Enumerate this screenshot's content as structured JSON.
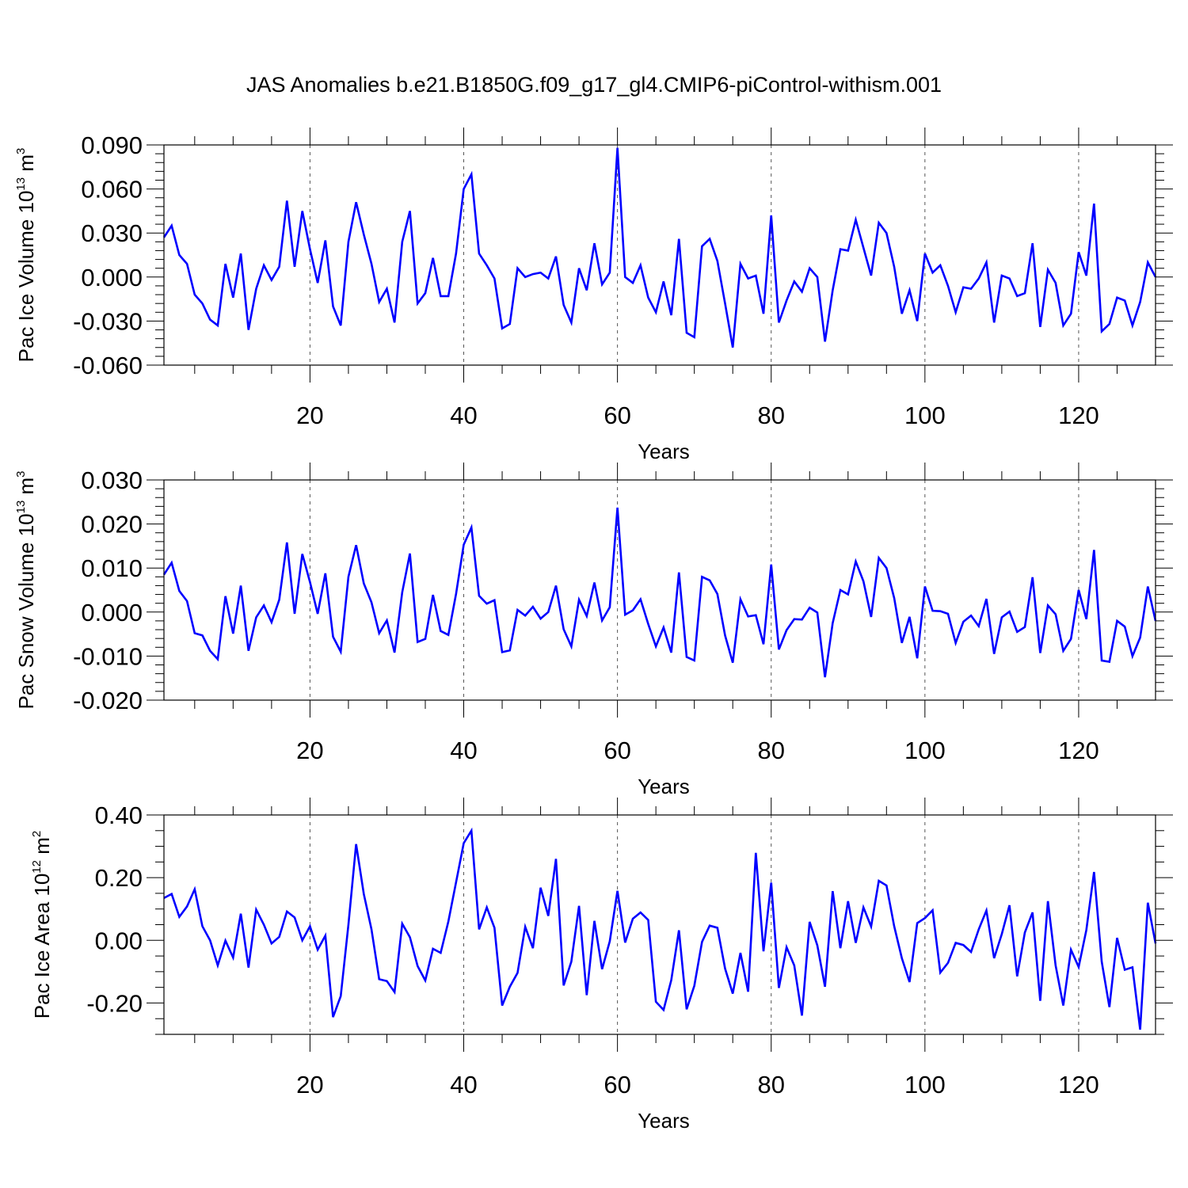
{
  "title": "JAS Anomalies b.e21.B1850G.f09_g17_gl4.CMIP6-piControl-withism.001",
  "colors": {
    "series": "#0000ff",
    "axis": "#000000",
    "grid": "#555555"
  },
  "chart_data": [
    {
      "type": "line",
      "title": "",
      "xlabel": "Years",
      "ylabel": {
        "prefix": "Pac Ice Volume 10",
        "exp": "13",
        "unit": " m",
        "unit_exp": "3"
      },
      "xlim": [
        1,
        130
      ],
      "ylim": [
        -0.06,
        0.09
      ],
      "xticks": [
        20,
        40,
        60,
        80,
        100,
        120
      ],
      "yticks": [
        -0.06,
        -0.03,
        0.0,
        0.03,
        0.06,
        0.09
      ],
      "ytick_labels": [
        "-0.060",
        "-0.030",
        "0.000",
        "0.030",
        "0.060",
        "0.090"
      ],
      "yminor": 0.006,
      "x_start": 1,
      "series": [
        {
          "name": "Pac Ice Volume",
          "values": [
            0.027,
            0.035,
            0.015,
            0.009,
            -0.012,
            -0.018,
            -0.029,
            -0.033,
            0.009,
            -0.014,
            0.016,
            -0.036,
            -0.008,
            0.008,
            -0.002,
            0.007,
            0.052,
            0.007,
            0.045,
            0.019,
            -0.004,
            0.025,
            -0.02,
            -0.033,
            0.024,
            0.051,
            0.029,
            0.009,
            -0.017,
            -0.008,
            -0.031,
            0.024,
            0.045,
            -0.018,
            -0.011,
            0.013,
            -0.013,
            -0.013,
            0.016,
            0.06,
            0.07,
            0.016,
            0.008,
            -0.001,
            -0.035,
            -0.032,
            0.006,
            0.0,
            0.002,
            0.003,
            -0.001,
            0.014,
            -0.019,
            -0.031,
            0.006,
            -0.009,
            0.023,
            -0.005,
            0.003,
            0.088,
            0.0,
            -0.004,
            0.008,
            -0.014,
            -0.024,
            -0.003,
            -0.026,
            0.026,
            -0.038,
            -0.041,
            0.021,
            0.026,
            0.011,
            -0.018,
            -0.048,
            0.009,
            -0.001,
            0.001,
            -0.025,
            0.042,
            -0.031,
            -0.016,
            -0.003,
            -0.01,
            0.006,
            0.0,
            -0.044,
            -0.009,
            0.019,
            0.018,
            0.039,
            0.02,
            0.001,
            0.037,
            0.03,
            0.007,
            -0.025,
            -0.009,
            -0.03,
            0.016,
            0.003,
            0.008,
            -0.006,
            -0.024,
            -0.007,
            -0.008,
            -0.001,
            0.01,
            -0.031,
            0.001,
            -0.001,
            -0.013,
            -0.011,
            0.023,
            -0.034,
            0.005,
            -0.004,
            -0.033,
            -0.025,
            0.017,
            0.001,
            0.05,
            -0.037,
            -0.032,
            -0.014,
            -0.016,
            -0.033,
            -0.017,
            0.01,
            0.0
          ]
        }
      ]
    },
    {
      "type": "line",
      "title": "",
      "xlabel": "Years",
      "ylabel": {
        "prefix": "Pac Snow Volume 10",
        "exp": "13",
        "unit": " m",
        "unit_exp": "3"
      },
      "xlim": [
        1,
        130
      ],
      "ylim": [
        -0.02,
        0.03
      ],
      "xticks": [
        20,
        40,
        60,
        80,
        100,
        120
      ],
      "yticks": [
        -0.02,
        -0.01,
        0.0,
        0.01,
        0.02,
        0.03
      ],
      "ytick_labels": [
        "-0.020",
        "-0.010",
        "0.000",
        "0.010",
        "0.020",
        "0.030"
      ],
      "yminor": 0.002,
      "x_start": 1,
      "series": [
        {
          "name": "Pac Snow Volume",
          "values": [
            0.0085,
            0.0112,
            0.0048,
            0.0025,
            -0.0048,
            -0.0053,
            -0.0088,
            -0.0107,
            0.0036,
            -0.0049,
            0.006,
            -0.0088,
            -0.0012,
            0.0015,
            -0.0023,
            0.0028,
            0.0158,
            -0.0004,
            0.0132,
            0.0068,
            -0.0004,
            0.0088,
            -0.0056,
            -0.009,
            0.008,
            0.0152,
            0.0065,
            0.0022,
            -0.0048,
            -0.0019,
            -0.0092,
            0.0045,
            0.0133,
            -0.0068,
            -0.0061,
            0.0039,
            -0.0043,
            -0.0052,
            0.0041,
            0.0153,
            0.0192,
            0.0037,
            0.0019,
            0.0027,
            -0.0091,
            -0.0087,
            0.0005,
            -0.0008,
            0.0012,
            -0.0015,
            0.0,
            0.006,
            -0.0039,
            -0.0078,
            0.0028,
            -0.0009,
            0.0067,
            -0.0019,
            0.0011,
            0.0237,
            -0.0006,
            0.0004,
            0.0029,
            -0.0027,
            -0.0078,
            -0.0035,
            -0.0092,
            0.009,
            -0.0102,
            -0.011,
            0.008,
            0.0072,
            0.0041,
            -0.0053,
            -0.0115,
            0.0029,
            -0.001,
            -0.0007,
            -0.0073,
            0.0108,
            -0.0085,
            -0.0041,
            -0.0016,
            -0.0017,
            0.001,
            -0.0001,
            -0.0148,
            -0.0025,
            0.005,
            0.004,
            0.0115,
            0.007,
            -0.0011,
            0.0123,
            0.01,
            0.0032,
            -0.007,
            -0.0011,
            -0.0105,
            0.0058,
            0.0003,
            0.0002,
            -0.0004,
            -0.007,
            -0.0022,
            -0.0008,
            -0.0032,
            0.003,
            -0.0095,
            -0.0012,
            0.0001,
            -0.0045,
            -0.0034,
            0.0079,
            -0.0093,
            0.0015,
            -0.0005,
            -0.0088,
            -0.0061,
            0.005,
            -0.0016,
            0.0141,
            -0.011,
            -0.0113,
            -0.002,
            -0.0033,
            -0.01,
            -0.0058,
            0.0058,
            -0.002
          ]
        }
      ]
    },
    {
      "type": "line",
      "title": "",
      "xlabel": "Years",
      "ylabel": {
        "prefix": "Pac Ice Area 10",
        "exp": "12",
        "unit": " m",
        "unit_exp": "2"
      },
      "xlim": [
        1,
        130
      ],
      "ylim": [
        -0.3,
        0.4
      ],
      "xticks": [
        20,
        40,
        60,
        80,
        100,
        120
      ],
      "yticks": [
        -0.2,
        0.0,
        0.2,
        0.4
      ],
      "ytick_labels": [
        "-0.20",
        "0.00",
        "0.20",
        "0.40"
      ],
      "yminor": 0.05,
      "x_start": 1,
      "series": [
        {
          "name": "Pac Ice Area",
          "values": [
            0.135,
            0.148,
            0.075,
            0.108,
            0.163,
            0.045,
            0.0,
            -0.08,
            -0.001,
            -0.055,
            0.085,
            -0.087,
            0.098,
            0.05,
            -0.01,
            0.011,
            0.092,
            0.073,
            0.0,
            0.045,
            -0.03,
            0.015,
            -0.245,
            -0.178,
            0.05,
            0.307,
            0.148,
            0.035,
            -0.124,
            -0.13,
            -0.165,
            0.053,
            0.01,
            -0.082,
            -0.128,
            -0.027,
            -0.04,
            0.06,
            0.185,
            0.31,
            0.35,
            0.035,
            0.105,
            0.04,
            -0.208,
            -0.148,
            -0.104,
            0.043,
            -0.025,
            0.168,
            0.078,
            0.26,
            -0.144,
            -0.068,
            0.11,
            -0.175,
            0.062,
            -0.092,
            -0.003,
            0.158,
            -0.007,
            0.069,
            0.089,
            0.065,
            -0.196,
            -0.222,
            -0.127,
            0.032,
            -0.22,
            -0.145,
            -0.005,
            0.047,
            0.04,
            -0.09,
            -0.17,
            -0.04,
            -0.164,
            0.279,
            -0.035,
            0.184,
            -0.152,
            -0.022,
            -0.08,
            -0.24,
            0.059,
            -0.016,
            -0.148,
            0.157,
            -0.025,
            0.125,
            -0.008,
            0.105,
            0.044,
            0.19,
            0.175,
            0.045,
            -0.057,
            -0.133,
            0.055,
            0.071,
            0.096,
            -0.103,
            -0.072,
            -0.008,
            -0.015,
            -0.037,
            0.035,
            0.095,
            -0.057,
            0.02,
            0.112,
            -0.115,
            0.025,
            0.089,
            -0.193,
            0.125,
            -0.08,
            -0.208,
            -0.03,
            -0.085,
            0.033,
            0.218,
            -0.068,
            -0.213,
            0.008,
            -0.094,
            -0.086,
            -0.285,
            0.12,
            -0.01
          ]
        }
      ]
    }
  ]
}
